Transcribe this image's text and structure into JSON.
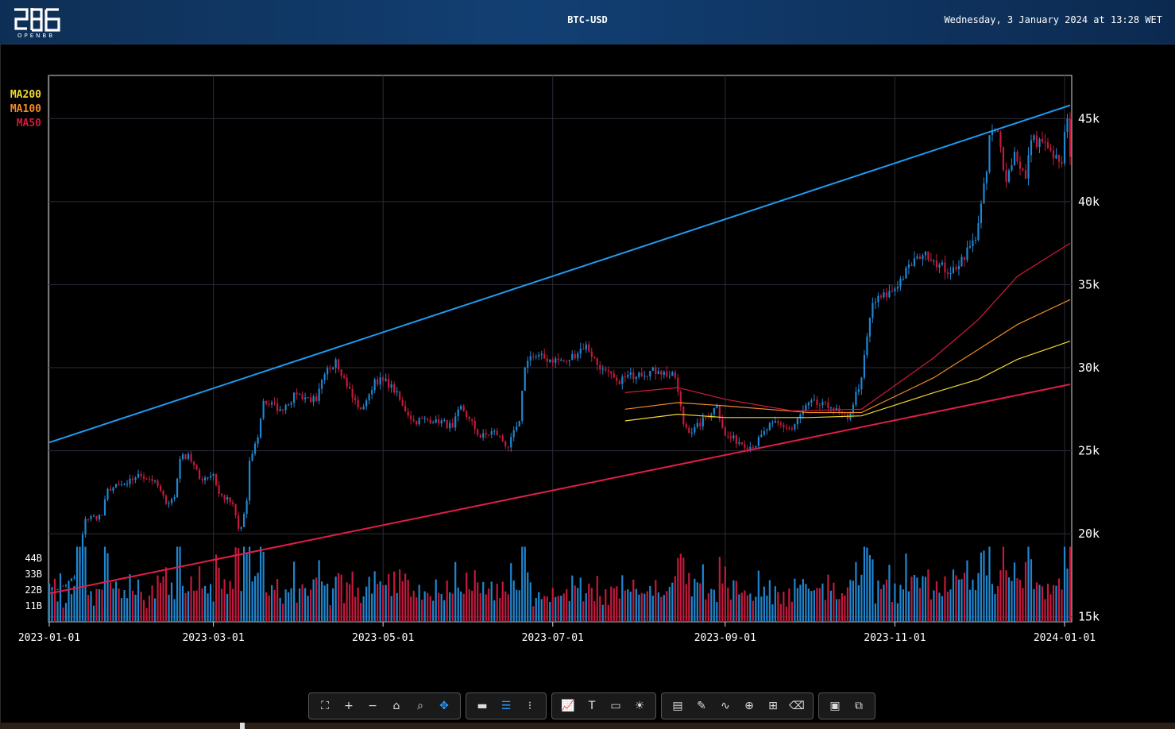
{
  "header": {
    "title": "BTC-USD",
    "datetime": "Wednesday, 3 January 2024 at 13:28 WET",
    "logo_text": "OPENBB"
  },
  "colors": {
    "bg": "#000000",
    "up": "#1f86d0",
    "down": "#c4193c",
    "upper_trend": "#1f9bee",
    "lower_trend": "#e01e48",
    "ma50": "#d11a3a",
    "ma100": "#f08a24",
    "ma200": "#f0d830",
    "grid": "#2c2c3a",
    "axis_text": "#ffffff"
  },
  "chart_data": {
    "type": "candlestick",
    "title": "BTC-USD",
    "x_ticks": [
      "2023-01-01",
      "2023-03-01",
      "2023-05-01",
      "2023-07-01",
      "2023-09-01",
      "2023-11-01",
      "2024-01-01"
    ],
    "y_ticks": [
      "15k",
      "20k",
      "25k",
      "30k",
      "35k",
      "40k",
      "45k"
    ],
    "y_tick_values": [
      15000,
      20000,
      25000,
      30000,
      35000,
      40000,
      45000
    ],
    "ylim": [
      14700,
      47600
    ],
    "volume_ticks": [
      "11B",
      "22B",
      "33B",
      "44B"
    ],
    "volume_tick_values": [
      11,
      22,
      33,
      44
    ],
    "legend": [
      {
        "name": "MA200",
        "color": "#f0d830"
      },
      {
        "name": "MA100",
        "color": "#f08a24"
      },
      {
        "name": "MA50",
        "color": "#d11a3a"
      }
    ],
    "grid": true,
    "close_anchors": [
      [
        "2023-01-01",
        16600
      ],
      [
        "2023-01-07",
        16900
      ],
      [
        "2023-01-10",
        17400
      ],
      [
        "2023-01-12",
        18800
      ],
      [
        "2023-01-14",
        20900
      ],
      [
        "2023-01-20",
        21100
      ],
      [
        "2023-01-22",
        22700
      ],
      [
        "2023-01-29",
        23000
      ],
      [
        "2023-02-02",
        23600
      ],
      [
        "2023-02-08",
        23200
      ],
      [
        "2023-02-12",
        21800
      ],
      [
        "2023-02-15",
        22200
      ],
      [
        "2023-02-17",
        24500
      ],
      [
        "2023-02-20",
        24800
      ],
      [
        "2023-02-24",
        23300
      ],
      [
        "2023-03-01",
        23600
      ],
      [
        "2023-03-03",
        22400
      ],
      [
        "2023-03-08",
        21800
      ],
      [
        "2023-03-10",
        20300
      ],
      [
        "2023-03-11",
        20400
      ],
      [
        "2023-03-13",
        22000
      ],
      [
        "2023-03-14",
        24400
      ],
      [
        "2023-03-17",
        25800
      ],
      [
        "2023-03-19",
        28000
      ],
      [
        "2023-03-25",
        27500
      ],
      [
        "2023-03-31",
        28400
      ],
      [
        "2023-04-07",
        28000
      ],
      [
        "2023-04-10",
        29600
      ],
      [
        "2023-04-14",
        30500
      ],
      [
        "2023-04-17",
        29400
      ],
      [
        "2023-04-20",
        28200
      ],
      [
        "2023-04-23",
        27500
      ],
      [
        "2023-04-26",
        28400
      ],
      [
        "2023-04-28",
        29300
      ],
      [
        "2023-05-04",
        29000
      ],
      [
        "2023-05-08",
        27700
      ],
      [
        "2023-05-12",
        26800
      ],
      [
        "2023-05-20",
        26900
      ],
      [
        "2023-05-26",
        26400
      ],
      [
        "2023-05-29",
        27700
      ],
      [
        "2023-06-01",
        26900
      ],
      [
        "2023-06-05",
        25800
      ],
      [
        "2023-06-10",
        26200
      ],
      [
        "2023-06-15",
        25200
      ],
      [
        "2023-06-19",
        26800
      ],
      [
        "2023-06-21",
        30000
      ],
      [
        "2023-06-23",
        30700
      ],
      [
        "2023-06-30",
        30500
      ],
      [
        "2023-07-06",
        30400
      ],
      [
        "2023-07-13",
        31400
      ],
      [
        "2023-07-18",
        29900
      ],
      [
        "2023-07-24",
        29200
      ],
      [
        "2023-08-01",
        29700
      ],
      [
        "2023-08-08",
        29800
      ],
      [
        "2023-08-14",
        29400
      ],
      [
        "2023-08-17",
        26600
      ],
      [
        "2023-08-20",
        26100
      ],
      [
        "2023-08-29",
        27700
      ],
      [
        "2023-09-01",
        25900
      ],
      [
        "2023-09-11",
        25200
      ],
      [
        "2023-09-18",
        26700
      ],
      [
        "2023-09-25",
        26300
      ],
      [
        "2023-10-01",
        27900
      ],
      [
        "2023-10-09",
        27600
      ],
      [
        "2023-10-15",
        26900
      ],
      [
        "2023-10-20",
        29400
      ],
      [
        "2023-10-23",
        33000
      ],
      [
        "2023-10-24",
        33900
      ],
      [
        "2023-10-31",
        34600
      ],
      [
        "2023-11-09",
        36700
      ],
      [
        "2023-11-12",
        37000
      ],
      [
        "2023-11-17",
        36200
      ],
      [
        "2023-11-21",
        35700
      ],
      [
        "2023-11-30",
        37700
      ],
      [
        "2023-12-01",
        38700
      ],
      [
        "2023-12-04",
        41800
      ],
      [
        "2023-12-05",
        44000
      ],
      [
        "2023-12-08",
        44200
      ],
      [
        "2023-12-11",
        41200
      ],
      [
        "2023-12-14",
        43000
      ],
      [
        "2023-12-18",
        41400
      ],
      [
        "2023-12-20",
        43700
      ],
      [
        "2023-12-24",
        43600
      ],
      [
        "2023-12-28",
        42600
      ],
      [
        "2023-12-31",
        42300
      ],
      [
        "2024-01-01",
        44200
      ],
      [
        "2024-01-02",
        45000
      ],
      [
        "2024-01-03",
        42700
      ]
    ],
    "upper_trendline": [
      [
        "2023-01-01",
        25500
      ],
      [
        "2024-01-03",
        45800
      ]
    ],
    "lower_trendline": [
      [
        "2023-01-01",
        16400
      ],
      [
        "2024-01-03",
        29000
      ]
    ],
    "ma50": [
      [
        "2023-07-27",
        28500
      ],
      [
        "2023-08-15",
        28800
      ],
      [
        "2023-09-01",
        28100
      ],
      [
        "2023-09-25",
        27400
      ],
      [
        "2023-10-20",
        27500
      ],
      [
        "2023-11-15",
        30600
      ],
      [
        "2023-12-01",
        32900
      ],
      [
        "2023-12-15",
        35500
      ],
      [
        "2024-01-03",
        37500
      ]
    ],
    "ma100": [
      [
        "2023-07-27",
        27500
      ],
      [
        "2023-08-15",
        27900
      ],
      [
        "2023-09-01",
        27700
      ],
      [
        "2023-10-01",
        27300
      ],
      [
        "2023-10-20",
        27300
      ],
      [
        "2023-11-15",
        29400
      ],
      [
        "2023-12-01",
        31100
      ],
      [
        "2023-12-15",
        32600
      ],
      [
        "2024-01-03",
        34100
      ]
    ],
    "ma200": [
      [
        "2023-07-27",
        26800
      ],
      [
        "2023-08-15",
        27200
      ],
      [
        "2023-09-01",
        27000
      ],
      [
        "2023-10-01",
        27000
      ],
      [
        "2023-10-20",
        27100
      ],
      [
        "2023-11-15",
        28500
      ],
      [
        "2023-12-01",
        29300
      ],
      [
        "2023-12-15",
        30500
      ],
      [
        "2024-01-03",
        31600
      ]
    ]
  },
  "toolbar": {
    "groups": [
      [
        {
          "name": "autoscale",
          "glyph": "⛶"
        },
        {
          "name": "zoom-in",
          "glyph": "+"
        },
        {
          "name": "zoom-out",
          "glyph": "−"
        },
        {
          "name": "reset-axes",
          "glyph": "⌂"
        },
        {
          "name": "zoom",
          "glyph": "⌕"
        },
        {
          "name": "pan",
          "glyph": "✥"
        }
      ],
      [
        {
          "name": "hover-closest",
          "glyph": "▬"
        },
        {
          "name": "hover-compare",
          "glyph": "☰"
        },
        {
          "name": "spikelines",
          "glyph": "⁝"
        }
      ],
      [
        {
          "name": "indicators",
          "glyph": "📈"
        },
        {
          "name": "add-text",
          "glyph": "T"
        },
        {
          "name": "change-title",
          "glyph": "▭"
        },
        {
          "name": "toggle-theme",
          "glyph": "☀"
        }
      ],
      [
        {
          "name": "change-color",
          "glyph": "▤"
        },
        {
          "name": "draw-line",
          "glyph": "✎"
        },
        {
          "name": "draw-open-path",
          "glyph": "∿"
        },
        {
          "name": "draw-circle",
          "glyph": "⊕"
        },
        {
          "name": "draw-rect",
          "glyph": "⊞"
        },
        {
          "name": "erase-shape",
          "glyph": "⌫"
        }
      ],
      [
        {
          "name": "download-csv",
          "glyph": "▣"
        },
        {
          "name": "download-image",
          "glyph": "⧉"
        }
      ]
    ]
  }
}
